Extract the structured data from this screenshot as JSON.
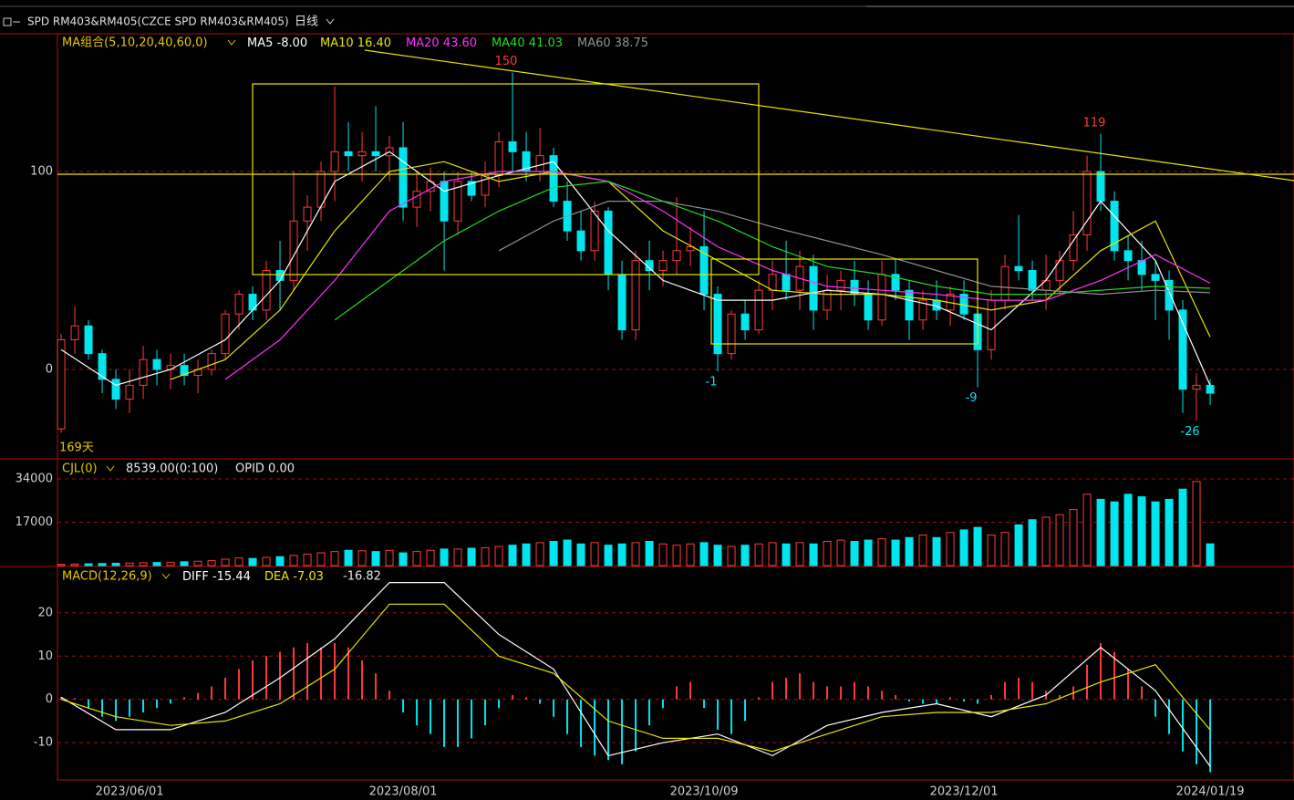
{
  "toolbar": {
    "symbol": "SPD RM403&RM405(CZCE SPD RM403&RM405)",
    "period": "日线"
  },
  "chart_data": [
    {
      "type": "candlestick",
      "header": "MA组合(5,10,20,40,60,0)",
      "up_color": "#ff3a3a",
      "down_color": "#00e5ee",
      "ohlc": [
        [
          -30,
          18,
          -32,
          15
        ],
        [
          15,
          32,
          8,
          22
        ],
        [
          22,
          25,
          5,
          8
        ],
        [
          8,
          10,
          -12,
          -5
        ],
        [
          -5,
          0,
          -20,
          -15
        ],
        [
          -15,
          0,
          -22,
          -8
        ],
        [
          -8,
          12,
          -15,
          5
        ],
        [
          5,
          10,
          -8,
          0
        ],
        [
          0,
          8,
          -10,
          2
        ],
        [
          2,
          8,
          -8,
          -3
        ],
        [
          -3,
          5,
          -12,
          0
        ],
        [
          0,
          10,
          -3,
          8
        ],
        [
          8,
          30,
          5,
          28
        ],
        [
          28,
          40,
          20,
          38
        ],
        [
          38,
          42,
          25,
          30
        ],
        [
          30,
          55,
          25,
          50
        ],
        [
          50,
          65,
          30,
          45
        ],
        [
          45,
          100,
          40,
          75
        ],
        [
          75,
          88,
          60,
          82
        ],
        [
          82,
          105,
          75,
          100
        ],
        [
          100,
          143,
          85,
          110
        ],
        [
          110,
          125,
          100,
          108
        ],
        [
          108,
          120,
          95,
          110
        ],
        [
          110,
          133,
          100,
          108
        ],
        [
          108,
          118,
          95,
          112
        ],
        [
          112,
          125,
          75,
          82
        ],
        [
          82,
          100,
          72,
          90
        ],
        [
          90,
          102,
          80,
          95
        ],
        [
          95,
          100,
          50,
          75
        ],
        [
          75,
          100,
          68,
          95
        ],
        [
          95,
          100,
          85,
          88
        ],
        [
          88,
          105,
          82,
          98
        ],
        [
          98,
          120,
          92,
          115
        ],
        [
          115,
          150,
          100,
          110
        ],
        [
          110,
          120,
          95,
          100
        ],
        [
          100,
          122,
          95,
          108
        ],
        [
          108,
          112,
          82,
          85
        ],
        [
          85,
          95,
          65,
          70
        ],
        [
          70,
          80,
          55,
          60
        ],
        [
          60,
          85,
          55,
          80
        ],
        [
          80,
          82,
          40,
          48
        ],
        [
          48,
          55,
          15,
          20
        ],
        [
          20,
          60,
          15,
          55
        ],
        [
          55,
          65,
          40,
          50
        ],
        [
          50,
          60,
          42,
          55
        ],
        [
          55,
          87,
          48,
          60
        ],
        [
          60,
          72,
          52,
          62
        ],
        [
          62,
          80,
          30,
          38
        ],
        [
          38,
          42,
          -1,
          8
        ],
        [
          8,
          30,
          5,
          28
        ],
        [
          28,
          35,
          15,
          20
        ],
        [
          20,
          45,
          18,
          40
        ],
        [
          40,
          55,
          30,
          48
        ],
        [
          48,
          65,
          35,
          40
        ],
        [
          40,
          60,
          30,
          52
        ],
        [
          52,
          58,
          20,
          30
        ],
        [
          30,
          48,
          25,
          40
        ],
        [
          40,
          50,
          30,
          45
        ],
        [
          45,
          55,
          32,
          38
        ],
        [
          38,
          45,
          20,
          25
        ],
        [
          25,
          55,
          22,
          48
        ],
        [
          48,
          56,
          35,
          40
        ],
        [
          40,
          45,
          15,
          25
        ],
        [
          25,
          40,
          20,
          35
        ],
        [
          35,
          45,
          25,
          30
        ],
        [
          30,
          42,
          22,
          38
        ],
        [
          38,
          45,
          25,
          28
        ],
        [
          28,
          30,
          -9,
          10
        ],
        [
          10,
          40,
          5,
          35
        ],
        [
          35,
          58,
          30,
          52
        ],
        [
          52,
          78,
          45,
          50
        ],
        [
          50,
          55,
          35,
          40
        ],
        [
          40,
          58,
          30,
          45
        ],
        [
          45,
          60,
          38,
          55
        ],
        [
          55,
          80,
          50,
          68
        ],
        [
          68,
          108,
          60,
          100
        ],
        [
          100,
          119,
          80,
          85
        ],
        [
          85,
          90,
          55,
          60
        ],
        [
          60,
          68,
          45,
          55
        ],
        [
          55,
          65,
          40,
          48
        ],
        [
          48,
          55,
          25,
          45
        ],
        [
          45,
          50,
          15,
          30
        ],
        [
          30,
          35,
          -22,
          -10
        ],
        [
          -10,
          -2,
          -26,
          -8
        ],
        [
          -8,
          -5,
          -18,
          -12
        ]
      ],
      "ma_x": [
        0,
        4,
        8,
        12,
        16,
        20,
        24,
        28,
        32,
        36,
        40,
        44,
        48,
        52,
        56,
        60,
        64,
        68,
        72,
        76,
        80,
        84
      ],
      "series": [
        {
          "name": "MA5",
          "color": "#ffffff",
          "current": "-8.00",
          "values": [
            10,
            -8,
            0,
            15,
            45,
            95,
            110,
            90,
            98,
            105,
            70,
            45,
            35,
            35,
            40,
            38,
            32,
            20,
            45,
            85,
            55,
            -8
          ]
        },
        {
          "name": "MA10",
          "color": "#e6e600",
          "current": "16.40",
          "values": [
            null,
            null,
            -5,
            5,
            30,
            70,
            100,
            105,
            95,
            100,
            95,
            70,
            55,
            40,
            38,
            38,
            35,
            30,
            35,
            60,
            75,
            16.4
          ]
        },
        {
          "name": "MA20",
          "color": "#ff33ff",
          "current": "43.60",
          "values": [
            null,
            null,
            null,
            -5,
            15,
            45,
            80,
            95,
            100,
            100,
            95,
            80,
            62,
            50,
            42,
            40,
            38,
            35,
            35,
            45,
            58,
            43.6
          ]
        },
        {
          "name": "MA40",
          "color": "#22dd22",
          "current": "41.03",
          "values": [
            null,
            null,
            null,
            null,
            null,
            25,
            45,
            65,
            80,
            92,
            95,
            85,
            75,
            62,
            52,
            48,
            42,
            38,
            38,
            40,
            42,
            41.03
          ]
        },
        {
          "name": "MA60",
          "color": "#909090",
          "current": "38.75",
          "values": [
            null,
            null,
            null,
            null,
            null,
            null,
            null,
            null,
            60,
            75,
            85,
            85,
            80,
            72,
            65,
            58,
            50,
            42,
            40,
            38,
            40,
            38.75
          ]
        }
      ],
      "annotations": [
        {
          "index": 33,
          "value": 150,
          "side": "high"
        },
        {
          "index": 76,
          "value": 119,
          "side": "high"
        },
        {
          "index": 48,
          "value": -1,
          "side": "low"
        },
        {
          "index": 67,
          "value": -9,
          "side": "low"
        },
        {
          "index": 83,
          "value": -26,
          "side": "low"
        }
      ],
      "period_label": "169天",
      "ylim": [
        -44.7,
        169.6
      ],
      "yticks": [
        0,
        100
      ],
      "xlim": [
        -0.27,
        90.13
      ],
      "grid": true
    },
    {
      "type": "bar",
      "header": "CJL(0)",
      "info": [
        "8539.00(0:100)",
        "OPID 0.00"
      ],
      "up_color": "#ff3a3a",
      "down_color": "#00e5ee",
      "values": [
        500,
        600,
        700,
        800,
        900,
        1000,
        1100,
        1200,
        1300,
        1500,
        1700,
        2000,
        2500,
        3000,
        2800,
        3200,
        3500,
        4000,
        4500,
        5000,
        5500,
        6000,
        5800,
        5500,
        6000,
        5000,
        5500,
        6000,
        6500,
        6500,
        6800,
        7000,
        7500,
        8000,
        8500,
        9000,
        9500,
        10000,
        8500,
        9000,
        8000,
        8500,
        9000,
        9500,
        8500,
        8000,
        8500,
        9000,
        8000,
        7500,
        8000,
        8500,
        9000,
        8500,
        9000,
        8500,
        9500,
        10000,
        9500,
        10000,
        10500,
        10000,
        11000,
        12000,
        11000,
        13000,
        14000,
        15000,
        12000,
        13000,
        16000,
        18000,
        19000,
        20000,
        22000,
        28000,
        26000,
        25000,
        28000,
        27000,
        25000,
        26000,
        30000,
        33000,
        8539
      ],
      "ylim": [
        0,
        41900
      ],
      "yticks": [
        17000,
        34000
      ],
      "xlim": [
        -0.27,
        90.13
      ],
      "grid": true
    },
    {
      "type": "macd",
      "header": "MACD(12,26,9)",
      "up_color": "#ff3a3a",
      "down_color": "#00e5ee",
      "histogram": {
        "current": "-16.82",
        "values": [
          0.5,
          0.3,
          -2,
          -4,
          -5,
          -4,
          -3,
          -2,
          -1,
          0.5,
          1.5,
          3,
          5,
          7,
          9,
          10,
          11,
          12,
          13,
          12,
          13,
          12,
          9,
          6,
          2,
          -3,
          -6,
          -8,
          -11,
          -11,
          -9,
          -6,
          -2,
          1,
          0.5,
          -1,
          -4,
          -8,
          -11,
          -13,
          -14,
          -15,
          -12,
          -6,
          -2,
          3,
          4,
          -2,
          -7,
          -8,
          -5,
          0.5,
          4,
          5,
          6,
          4,
          3,
          3,
          4,
          3,
          2,
          1,
          -0.5,
          -1,
          -1,
          0.5,
          -0.5,
          -1,
          1,
          4,
          5,
          4,
          2,
          1,
          3,
          8,
          13,
          11,
          7,
          3,
          -4,
          -8,
          -12,
          -15,
          -16.82
        ]
      },
      "line_x": [
        0,
        4,
        8,
        12,
        16,
        20,
        24,
        28,
        32,
        36,
        40,
        44,
        48,
        52,
        56,
        60,
        64,
        68,
        72,
        76,
        80,
        84
      ],
      "series": [
        {
          "name": "DIFF",
          "color": "#ffffff",
          "current": "-15.44",
          "values": [
            0.5,
            -7,
            -7,
            -3,
            5,
            14,
            27,
            27,
            15,
            7,
            -13,
            -10,
            -8,
            -13,
            -6,
            -3,
            -1,
            -4,
            1,
            12,
            2,
            -15.44
          ]
        },
        {
          "name": "DEA",
          "color": "#e6e600",
          "current": "-7.03",
          "values": [
            0,
            -4,
            -6,
            -5,
            -1,
            7,
            22,
            22,
            10,
            6,
            -5,
            -9,
            -9,
            -12,
            -8,
            -4,
            -3,
            -3,
            -1,
            4,
            8,
            -7.03
          ]
        }
      ],
      "ylim": [
        -18.6,
        30.7
      ],
      "yticks": [
        -10,
        0,
        10,
        20
      ],
      "xlim": [
        -0.27,
        90.13
      ],
      "xticks": [
        {
          "value": 5,
          "label": "2023/06/01"
        },
        {
          "value": 25,
          "label": "2023/08/01"
        },
        {
          "value": 47,
          "label": "2023/10/09"
        },
        {
          "value": 66,
          "label": "2023/12/01"
        },
        {
          "value": 84,
          "label": "2024/01/19"
        }
      ],
      "grid": true
    }
  ]
}
